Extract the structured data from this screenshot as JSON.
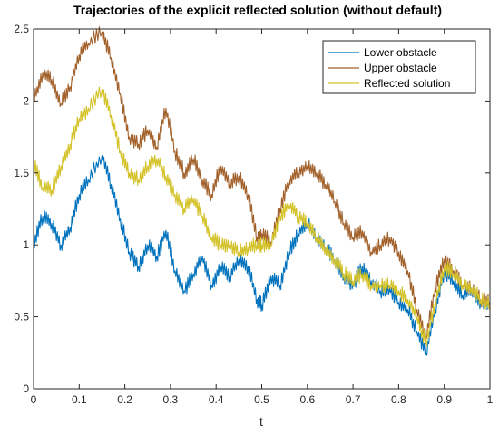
{
  "chart_data": {
    "type": "line",
    "title": "Trajectories of the explicit reflected solution (without default)",
    "xlabel": "t",
    "ylabel": "",
    "xlim": [
      0,
      1
    ],
    "ylim": [
      0,
      2.5
    ],
    "xticks": [
      "0",
      "0.1",
      "0.2",
      "0.3",
      "0.4",
      "0.5",
      "0.6",
      "0.7",
      "0.8",
      "0.9",
      "1"
    ],
    "yticks": [
      "0",
      "0.5",
      "1",
      "1.5",
      "2",
      "2.5"
    ],
    "grid": false,
    "legend_position": "top-right",
    "series": [
      {
        "name": "Lower obstacle",
        "color": "#0072BD",
        "x": [
          0,
          0.02,
          0.04,
          0.06,
          0.08,
          0.1,
          0.12,
          0.15,
          0.17,
          0.19,
          0.21,
          0.23,
          0.25,
          0.27,
          0.29,
          0.31,
          0.33,
          0.35,
          0.37,
          0.39,
          0.41,
          0.43,
          0.45,
          0.47,
          0.49,
          0.5,
          0.52,
          0.54,
          0.56,
          0.58,
          0.6,
          0.62,
          0.64,
          0.66,
          0.68,
          0.7,
          0.72,
          0.74,
          0.76,
          0.78,
          0.8,
          0.82,
          0.84,
          0.86,
          0.88,
          0.9,
          0.92,
          0.94,
          0.96,
          0.98,
          1.0
        ],
        "y": [
          1.0,
          1.2,
          1.15,
          1.0,
          1.12,
          1.35,
          1.45,
          1.62,
          1.42,
          1.18,
          0.95,
          0.85,
          1.0,
          0.92,
          1.1,
          0.82,
          0.68,
          0.8,
          0.92,
          0.72,
          0.85,
          0.78,
          0.9,
          0.85,
          0.62,
          0.58,
          0.78,
          0.72,
          0.95,
          1.08,
          1.15,
          1.05,
          0.98,
          0.9,
          0.78,
          0.72,
          0.85,
          0.75,
          0.68,
          0.7,
          0.6,
          0.55,
          0.4,
          0.25,
          0.55,
          0.82,
          0.75,
          0.65,
          0.7,
          0.6,
          0.6
        ]
      },
      {
        "name": "Upper obstacle",
        "color": "#A2612B",
        "x": [
          0,
          0.02,
          0.04,
          0.06,
          0.08,
          0.1,
          0.12,
          0.15,
          0.17,
          0.19,
          0.21,
          0.23,
          0.25,
          0.27,
          0.29,
          0.31,
          0.33,
          0.35,
          0.37,
          0.39,
          0.41,
          0.43,
          0.45,
          0.47,
          0.49,
          0.5,
          0.52,
          0.54,
          0.56,
          0.58,
          0.6,
          0.62,
          0.64,
          0.66,
          0.68,
          0.7,
          0.72,
          0.74,
          0.76,
          0.78,
          0.8,
          0.82,
          0.84,
          0.86,
          0.88,
          0.9,
          0.92,
          0.94,
          0.96,
          0.98,
          1.0
        ],
        "y": [
          2.0,
          2.2,
          2.15,
          1.98,
          2.1,
          2.32,
          2.4,
          2.48,
          2.3,
          2.05,
          1.75,
          1.7,
          1.8,
          1.68,
          1.95,
          1.65,
          1.5,
          1.6,
          1.45,
          1.35,
          1.55,
          1.42,
          1.48,
          1.35,
          1.05,
          1.08,
          1.02,
          1.25,
          1.45,
          1.5,
          1.55,
          1.5,
          1.42,
          1.3,
          1.15,
          1.05,
          1.1,
          0.95,
          1.0,
          1.05,
          0.95,
          0.82,
          0.55,
          0.35,
          0.7,
          0.9,
          0.82,
          0.72,
          0.7,
          0.62,
          0.6
        ]
      },
      {
        "name": "Reflected solution",
        "color": "#D4C22A",
        "x": [
          0,
          0.02,
          0.04,
          0.06,
          0.08,
          0.1,
          0.12,
          0.15,
          0.17,
          0.19,
          0.21,
          0.23,
          0.25,
          0.27,
          0.29,
          0.31,
          0.33,
          0.35,
          0.37,
          0.39,
          0.41,
          0.43,
          0.45,
          0.47,
          0.49,
          0.5,
          0.52,
          0.54,
          0.56,
          0.58,
          0.6,
          0.62,
          0.64,
          0.66,
          0.68,
          0.7,
          0.72,
          0.74,
          0.76,
          0.78,
          0.8,
          0.82,
          0.84,
          0.86,
          0.88,
          0.9,
          0.92,
          0.94,
          0.96,
          0.98,
          1.0
        ],
        "y": [
          1.57,
          1.4,
          1.38,
          1.55,
          1.7,
          1.88,
          1.95,
          2.08,
          1.9,
          1.65,
          1.5,
          1.45,
          1.55,
          1.6,
          1.48,
          1.35,
          1.25,
          1.32,
          1.2,
          1.05,
          1.0,
          1.0,
          0.95,
          0.98,
          1.0,
          1.0,
          1.0,
          1.2,
          1.28,
          1.2,
          1.15,
          1.05,
          0.98,
          0.9,
          0.8,
          0.75,
          0.8,
          0.72,
          0.72,
          0.72,
          0.68,
          0.62,
          0.5,
          0.32,
          0.6,
          0.85,
          0.8,
          0.72,
          0.7,
          0.62,
          0.58
        ]
      }
    ]
  }
}
